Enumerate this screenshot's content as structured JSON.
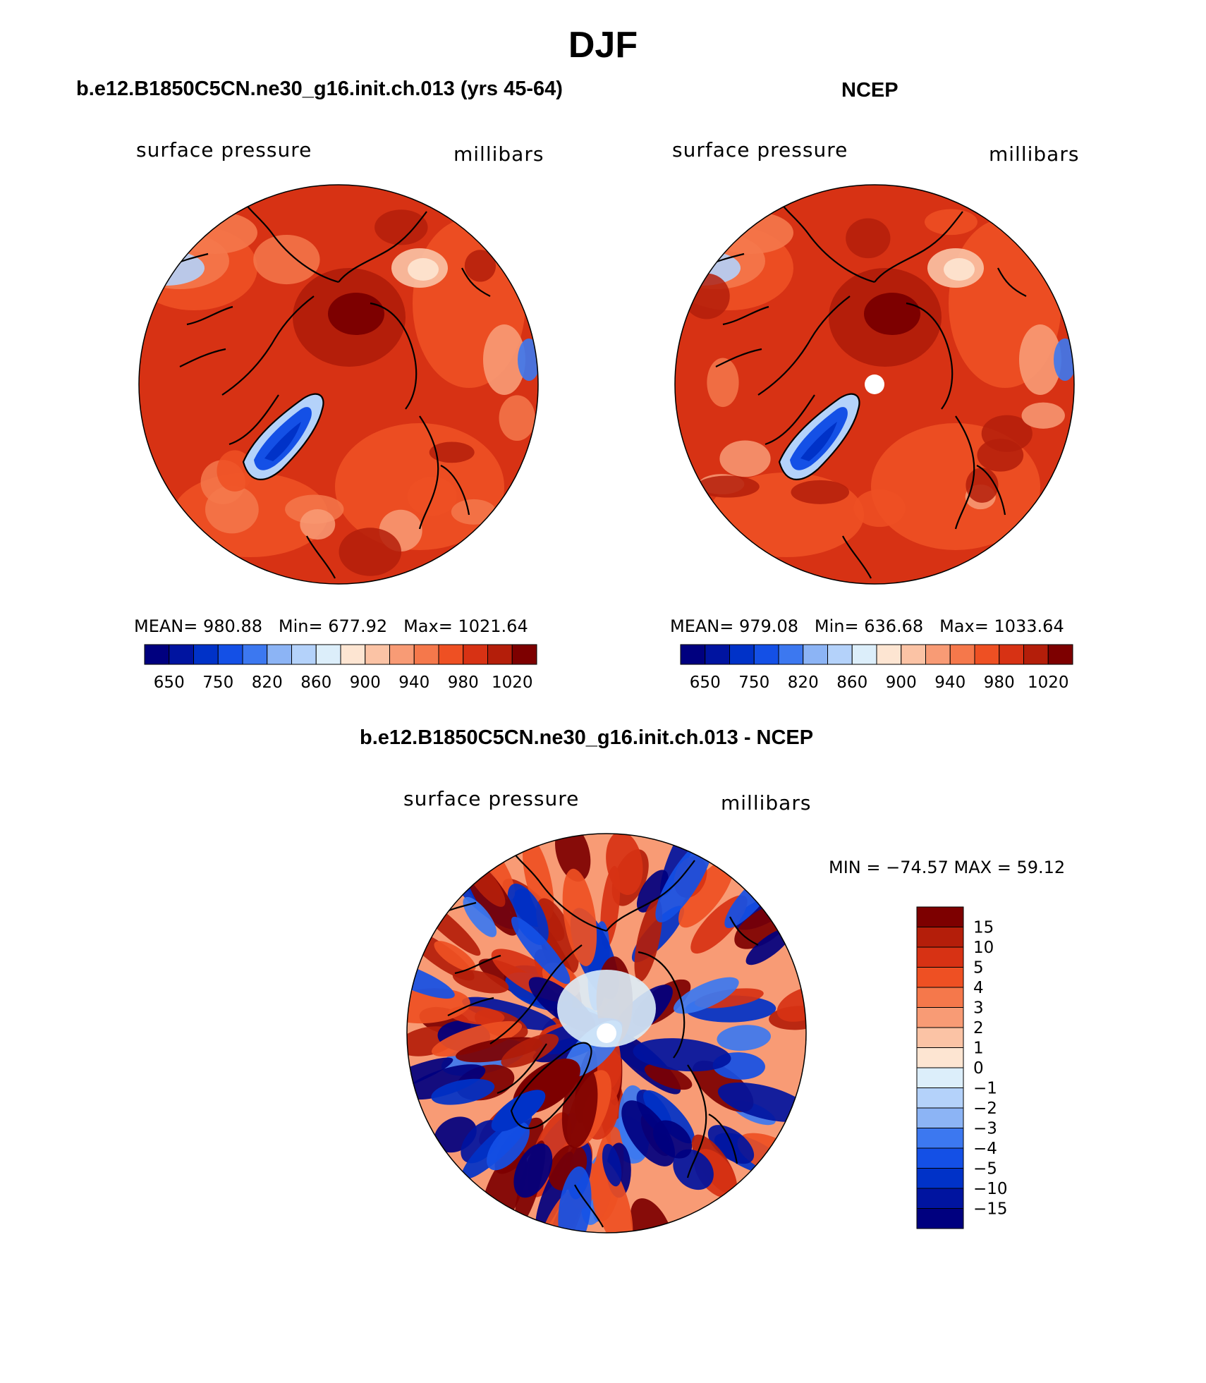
{
  "title": "DJF",
  "panels": [
    {
      "id": "model",
      "subtitle": "b.e12.B1850C5CN.ne30_g16.init.ch.013 (yrs 45-64)",
      "left_label": "surface pressure",
      "right_label": "millibars",
      "stats": {
        "mean_label": "MEAN=",
        "mean": "980.88",
        "min_label": "Min=",
        "min": "677.92",
        "max_label": "Max=",
        "max": "1021.64"
      },
      "greenland_low": true,
      "pole_hole": false
    },
    {
      "id": "obs",
      "subtitle": "NCEP",
      "left_label": "surface pressure",
      "right_label": "millibars",
      "stats": {
        "mean_label": "MEAN=",
        "mean": "979.08",
        "min_label": "Min=",
        "min": "636.68",
        "max_label": "Max=",
        "max": "1033.64"
      },
      "greenland_low": true,
      "pole_hole": true
    },
    {
      "id": "diff",
      "subtitle": "b.e12.B1850C5CN.ne30_g16.init.ch.013 - NCEP",
      "left_label": "surface pressure",
      "right_label": "millibars",
      "minmax_text": "MIN = −74.57 MAX =  59.12",
      "pole_hole": true
    }
  ],
  "colorbar_horizontal": {
    "colors": [
      "#00007f",
      "#0014a0",
      "#0032c8",
      "#1450e6",
      "#3c78f0",
      "#8cb4f5",
      "#b4d2fa",
      "#dceefa",
      "#fde5d2",
      "#fbc3a5",
      "#f89b75",
      "#f5784b",
      "#ee5023",
      "#d73214",
      "#b41e0a",
      "#7d0000"
    ],
    "tick_labels": [
      "650",
      "750",
      "820",
      "860",
      "900",
      "940",
      "980",
      "1020"
    ]
  },
  "colorbar_vertical": {
    "colors_top_to_bottom": [
      "#7d0000",
      "#b41e0a",
      "#d73214",
      "#ee5023",
      "#f5784b",
      "#f89b75",
      "#fbc3a5",
      "#fde5d2",
      "#dceefa",
      "#b4d2fa",
      "#8cb4f5",
      "#3c78f0",
      "#1450e6",
      "#0032c8",
      "#0014a0",
      "#00007f"
    ],
    "tick_labels": [
      "15",
      "10",
      "5",
      "4",
      "3",
      "2",
      "1",
      "0",
      "−1",
      "−2",
      "−3",
      "−4",
      "−5",
      "−10",
      "−15"
    ]
  }
}
